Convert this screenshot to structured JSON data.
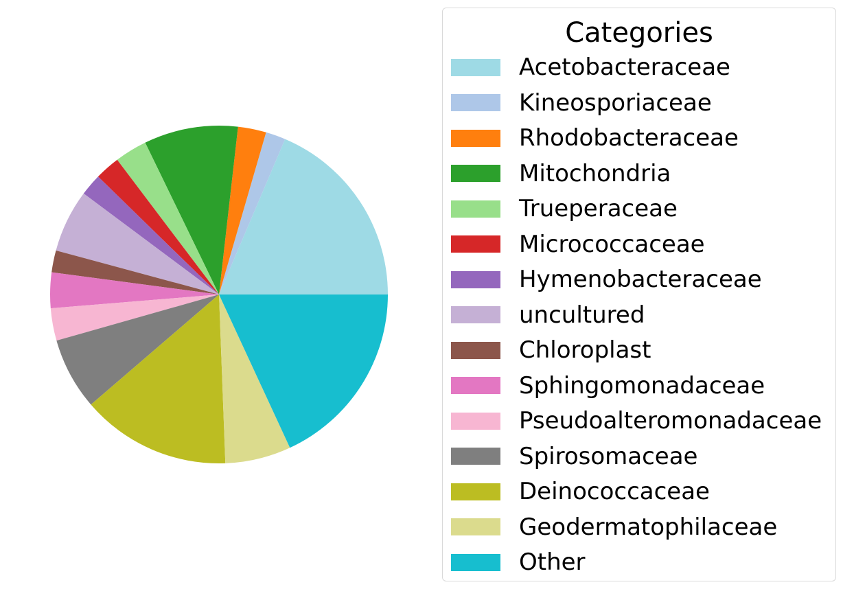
{
  "chart_data": {
    "type": "pie",
    "title": "",
    "legend_title": "Categories",
    "legend_placement": "right",
    "start_angle_deg": 0,
    "direction": "counterclockwise",
    "slices": [
      {
        "label": "Acetobacteraceae",
        "value": 18.6,
        "color": "#9edae5"
      },
      {
        "label": "Kineosporiaceae",
        "value": 1.9,
        "color": "#aec7e8"
      },
      {
        "label": "Rhodobacteraceae",
        "value": 2.7,
        "color": "#ff7f0e"
      },
      {
        "label": "Mitochondria",
        "value": 9.0,
        "color": "#2ca02c"
      },
      {
        "label": "Trueperaceae",
        "value": 3.1,
        "color": "#98df8a"
      },
      {
        "label": "Micrococcaceae",
        "value": 2.4,
        "color": "#d62728"
      },
      {
        "label": "Hymenobacteraceae",
        "value": 2.1,
        "color": "#9467bd"
      },
      {
        "label": "uncultured",
        "value": 6.0,
        "color": "#c5b0d5"
      },
      {
        "label": "Chloroplast",
        "value": 2.1,
        "color": "#8c564b"
      },
      {
        "label": "Sphingomonadaceae",
        "value": 3.4,
        "color": "#e377c2"
      },
      {
        "label": "Pseudoalteromonadaceae",
        "value": 3.1,
        "color": "#f7b6d2"
      },
      {
        "label": "Spirosomaceae",
        "value": 6.9,
        "color": "#7f7f7f"
      },
      {
        "label": "Deinococcaceae",
        "value": 14.3,
        "color": "#bcbd22"
      },
      {
        "label": "Geodermatophilaceae",
        "value": 6.3,
        "color": "#dbdb8d"
      },
      {
        "label": "Other",
        "value": 18.1,
        "color": "#17becf"
      }
    ]
  }
}
